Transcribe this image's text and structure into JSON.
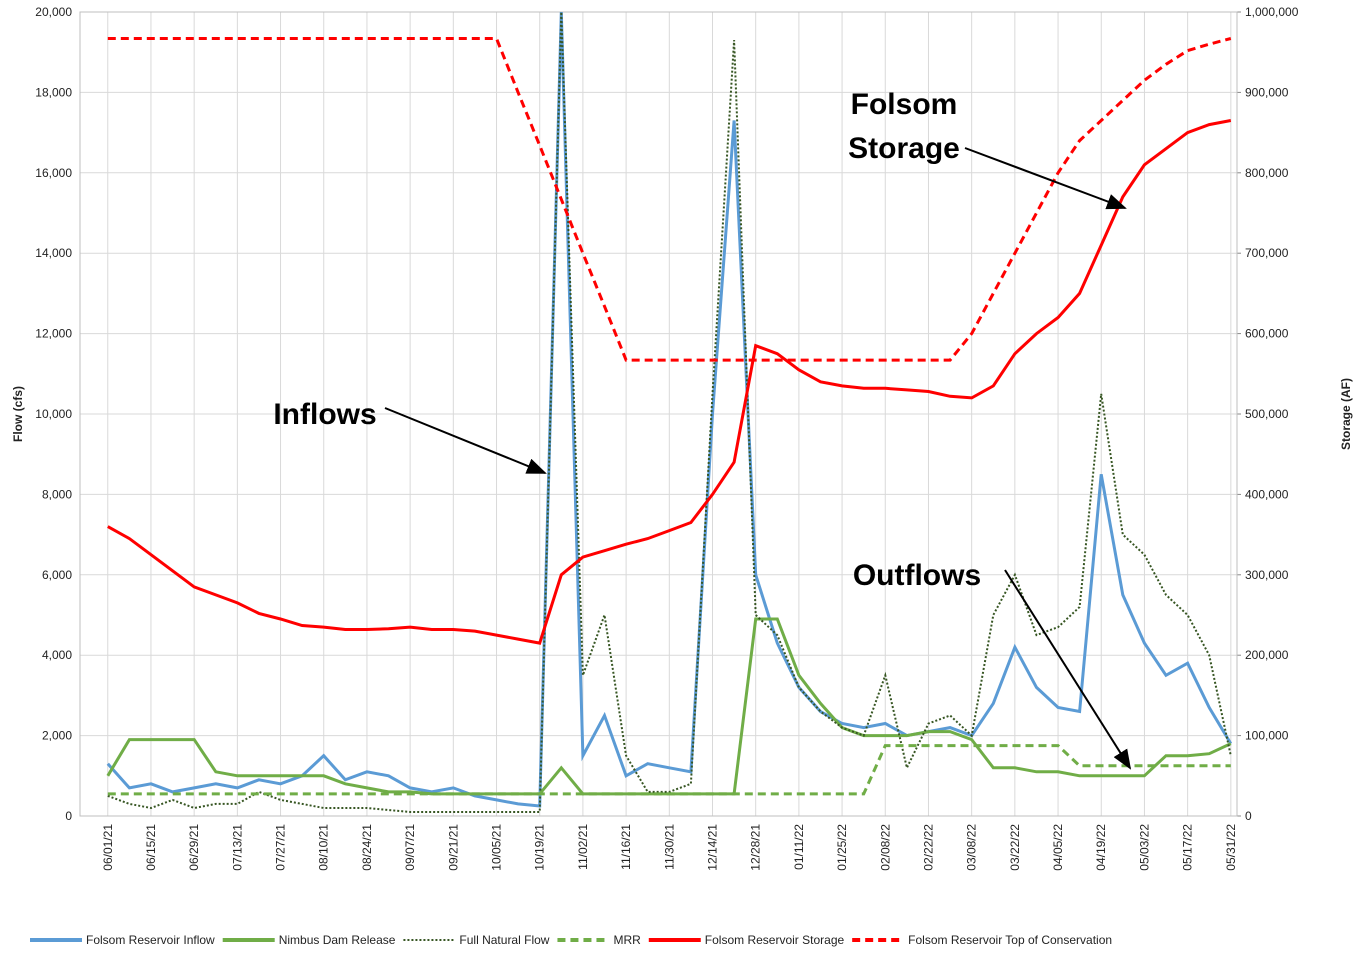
{
  "chart_data": {
    "type": "line",
    "ylabel": "Flow (cfs)",
    "y2label": "Storage (AF)",
    "grid": true,
    "legend": "bottom",
    "annotations": [
      {
        "lines": [
          "Inflows"
        ]
      },
      {
        "lines": [
          "Outflows"
        ]
      },
      {
        "lines": [
          "Folsom",
          "Storage"
        ]
      }
    ],
    "x": [
      "06/01/21",
      "06/08/21",
      "06/15/21",
      "06/22/21",
      "06/29/21",
      "07/06/21",
      "07/13/21",
      "07/20/21",
      "07/27/21",
      "08/03/21",
      "08/10/21",
      "08/17/21",
      "08/24/21",
      "08/31/21",
      "09/07/21",
      "09/14/21",
      "09/21/21",
      "09/28/21",
      "10/05/21",
      "10/12/21",
      "10/19/21",
      "10/26/21",
      "11/02/21",
      "11/09/21",
      "11/16/21",
      "11/23/21",
      "11/30/21",
      "12/07/21",
      "12/14/21",
      "12/21/21",
      "12/28/21",
      "01/04/22",
      "01/11/22",
      "01/18/22",
      "01/25/22",
      "02/01/22",
      "02/08/22",
      "02/15/22",
      "02/22/22",
      "03/01/22",
      "03/08/22",
      "03/15/22",
      "03/22/22",
      "03/29/22",
      "04/05/22",
      "04/12/22",
      "04/19/22",
      "04/26/22",
      "05/03/22",
      "05/10/22",
      "05/17/22",
      "05/24/22",
      "05/31/22"
    ],
    "xlim": [
      "05/23/21",
      "06/02/22"
    ],
    "xticks": [
      "06/01/21",
      "06/15/21",
      "06/29/21",
      "07/13/21",
      "07/27/21",
      "08/10/21",
      "08/24/21",
      "09/07/21",
      "09/21/21",
      "10/05/21",
      "10/19/21",
      "11/02/21",
      "11/16/21",
      "11/30/21",
      "12/14/21",
      "12/28/21",
      "01/11/22",
      "01/25/22",
      "02/08/22",
      "02/22/22",
      "03/08/22",
      "03/22/22",
      "04/05/22",
      "04/19/22",
      "05/03/22",
      "05/17/22",
      "05/31/22"
    ],
    "ylim": [
      0,
      20000
    ],
    "yticks": [
      0,
      {
        "value": 2000,
        "label": "2,000"
      },
      {
        "value": 4000,
        "label": "4,000"
      },
      {
        "value": 6000,
        "label": "6,000"
      },
      {
        "value": 8000,
        "label": "8,000"
      },
      {
        "value": 10000,
        "label": "10,000"
      },
      {
        "value": 12000,
        "label": "12,000"
      },
      {
        "value": 14000,
        "label": "14,000"
      },
      {
        "value": 16000,
        "label": "16,000"
      },
      {
        "value": 18000,
        "label": "18,000"
      },
      {
        "value": 20000,
        "label": "20,000"
      }
    ],
    "y2lim": [
      0,
      1000000
    ],
    "y2ticks": [
      0,
      {
        "value": 100000,
        "label": "100,000"
      },
      {
        "value": 200000,
        "label": "200,000"
      },
      {
        "value": 300000,
        "label": "300,000"
      },
      {
        "value": 400000,
        "label": "400,000"
      },
      {
        "value": 500000,
        "label": "500,000"
      },
      {
        "value": 600000,
        "label": "600,000"
      },
      {
        "value": 700000,
        "label": "700,000"
      },
      {
        "value": 800000,
        "label": "800,000"
      },
      {
        "value": 900000,
        "label": "900,000"
      },
      {
        "value": 1000000,
        "label": "1,000,000"
      }
    ],
    "series": [
      {
        "name": "Folsom Reservoir Inflow",
        "color": "#5b9bd5",
        "style": "solid",
        "values": [
          1300,
          700,
          800,
          600,
          700,
          800,
          700,
          900,
          800,
          1000,
          1500,
          900,
          1100,
          1000,
          700,
          600,
          700,
          500,
          400,
          300,
          250,
          20000,
          1500,
          2500,
          1000,
          1300,
          1200,
          1100,
          10000,
          17300,
          6000,
          4300,
          3200,
          2600,
          2300,
          2200,
          2300,
          2000,
          2100,
          2200,
          2000,
          2800,
          4200,
          3200,
          2700,
          2600,
          8500,
          5500,
          4300,
          3500,
          3800,
          2700,
          1800
        ]
      },
      {
        "name": "Nimbus Dam Release",
        "color": "#70ad47",
        "style": "solid",
        "values": [
          1000,
          1900,
          1900,
          1900,
          1900,
          1100,
          1000,
          1000,
          1000,
          1000,
          1000,
          800,
          700,
          600,
          600,
          550,
          550,
          550,
          550,
          550,
          550,
          1200,
          550,
          550,
          550,
          550,
          550,
          550,
          550,
          550,
          4900,
          4900,
          3500,
          2800,
          2200,
          2000,
          2000,
          2000,
          2100,
          2100,
          1900,
          1200,
          1200,
          1100,
          1100,
          1000,
          1000,
          1000,
          1000,
          1500,
          1500,
          1550,
          1800
        ]
      },
      {
        "name": "Full Natural Flow",
        "color": "#375623",
        "style": "dotted",
        "values": [
          500,
          300,
          200,
          400,
          200,
          300,
          300,
          600,
          400,
          300,
          200,
          200,
          200,
          150,
          100,
          100,
          100,
          100,
          100,
          100,
          100,
          20000,
          3500,
          5000,
          1500,
          600,
          600,
          800,
          10500,
          19300,
          5000,
          4500,
          3200,
          2600,
          2200,
          2000,
          3500,
          1200,
          2300,
          2500,
          2000,
          5000,
          6000,
          4500,
          4700,
          5200,
          10500,
          7000,
          6500,
          5500,
          5000,
          4000,
          1500
        ]
      },
      {
        "name": "MRR",
        "color": "#70ad47",
        "style": "dashed",
        "values": [
          550,
          550,
          550,
          550,
          550,
          550,
          550,
          550,
          550,
          550,
          550,
          550,
          550,
          550,
          550,
          550,
          550,
          550,
          550,
          550,
          550,
          550,
          550,
          550,
          550,
          550,
          550,
          550,
          550,
          550,
          550,
          550,
          550,
          550,
          550,
          550,
          1750,
          1750,
          1750,
          1750,
          1750,
          1750,
          1750,
          1750,
          1750,
          1250,
          1250,
          1250,
          1250,
          1250,
          1250,
          1250,
          1250
        ]
      },
      {
        "name": "Folsom Reservoir Storage",
        "color": "#ff0000",
        "style": "solid",
        "axis": "y2",
        "values": [
          360000,
          345000,
          325000,
          305000,
          285000,
          275000,
          265000,
          252000,
          245000,
          237000,
          235000,
          232000,
          232000,
          233000,
          235000,
          232000,
          232000,
          230000,
          225000,
          220000,
          215000,
          300000,
          322000,
          330000,
          338000,
          345000,
          355000,
          365000,
          400000,
          440000,
          585000,
          575000,
          555000,
          540000,
          535000,
          532000,
          532000,
          530000,
          528000,
          522000,
          520000,
          535000,
          575000,
          600000,
          620000,
          650000,
          710000,
          770000,
          810000,
          830000,
          850000,
          860000,
          865000
        ]
      },
      {
        "name": "Folsom Reservoir Top of Conservation",
        "color": "#ff0000",
        "style": "dashed",
        "axis": "y2",
        "values": [
          967000,
          967000,
          967000,
          967000,
          967000,
          967000,
          967000,
          967000,
          967000,
          967000,
          967000,
          967000,
          967000,
          967000,
          967000,
          967000,
          967000,
          967000,
          967000,
          900000,
          834000,
          767000,
          700000,
          634000,
          567000,
          567000,
          567000,
          567000,
          567000,
          567000,
          567000,
          567000,
          567000,
          567000,
          567000,
          567000,
          567000,
          567000,
          567000,
          567000,
          600000,
          650000,
          700000,
          750000,
          800000,
          840000,
          865000,
          890000,
          915000,
          935000,
          952000,
          960000,
          967000
        ]
      }
    ]
  }
}
